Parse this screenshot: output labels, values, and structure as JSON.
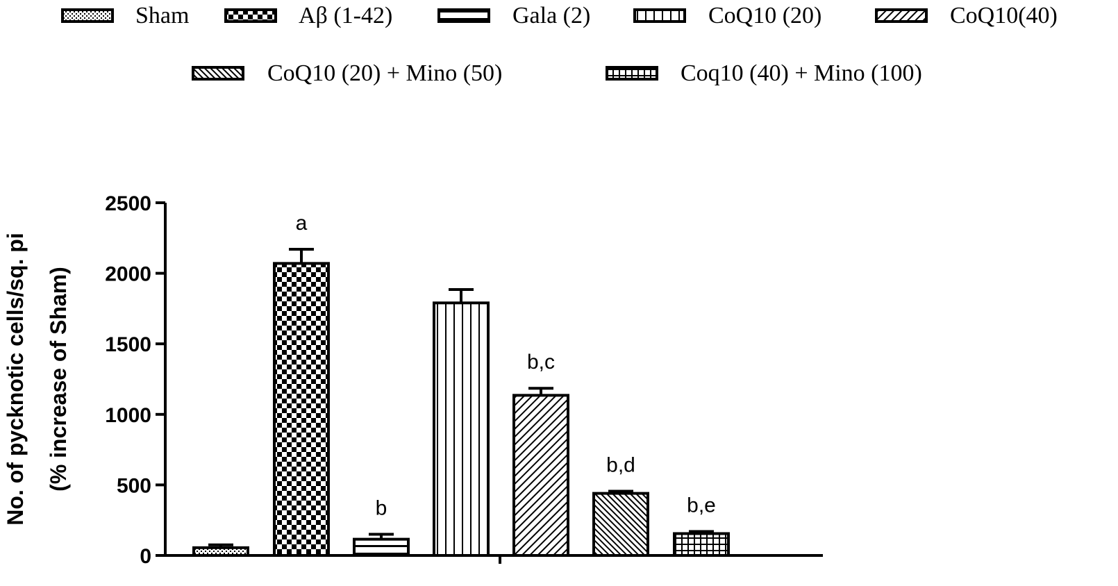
{
  "chart_data": {
    "type": "bar",
    "title": "",
    "xlabel": "",
    "ylabel_lines": [
      "No. of pycknotic cells/sq. pi",
      "(% increase of Sham)"
    ],
    "ylim": [
      0,
      2500
    ],
    "yticks": [
      "0",
      "500",
      "1000",
      "1500",
      "2000",
      "2500"
    ],
    "legend_position": "top",
    "categories": [
      "Sham",
      "Aβ (1-42)",
      "Gala (2)",
      "CoQ10 (20)",
      "CoQ10(40)",
      "CoQ10 (20) + Mino (50)",
      "Coq10 (40) + Mino (100)"
    ],
    "values": [
      55,
      2070,
      115,
      1790,
      1135,
      440,
      155
    ],
    "errors": [
      20,
      100,
      35,
      95,
      50,
      15,
      15
    ],
    "annotations": [
      "",
      "a",
      "b",
      "",
      "b,c",
      "b,d",
      "b,e"
    ],
    "patterns": [
      "dots",
      "checker",
      "hlines",
      "vlines",
      "diag",
      "diag2",
      "grid"
    ]
  }
}
